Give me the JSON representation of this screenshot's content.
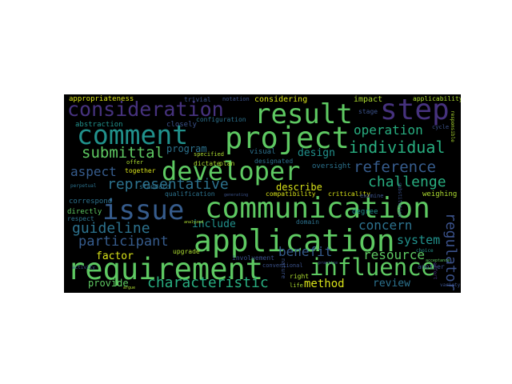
{
  "palette": {
    "background": "#000000",
    "purple": "#46327e",
    "indigo": "#3b528b",
    "blue": "#365c8d",
    "teal": "#2c728e",
    "green_teal": "#21918c",
    "sea": "#28ae80",
    "green": "#5ec962",
    "lime": "#addc30",
    "yellow": "#d8e219"
  },
  "words": {
    "communication": "communication",
    "application": "application",
    "requirement": "requirement",
    "project": "project",
    "developer": "developer",
    "issue": "issue",
    "result": "result",
    "consideration": "consideration",
    "step": "step",
    "comment": "comment",
    "influence": "influence",
    "characteristic": "characteristic",
    "individual": "individual",
    "reference": "reference",
    "representative": "representative",
    "submittal": "submittal",
    "guideline": "guideline",
    "participant": "participant",
    "challenge": "challenge",
    "operation": "operation",
    "aspect": "aspect",
    "benefit": "benefit",
    "concern": "concern",
    "system": "system",
    "resource": "resource",
    "regulator": "regulator",
    "method": "method",
    "review": "review",
    "provide": "provide",
    "factor": "factor",
    "describe": "describe",
    "design": "design",
    "include": "include",
    "program": "program",
    "appropriateness": "appropriateness",
    "considering": "considering",
    "impact": "impact",
    "applicability": "applicability",
    "abstraction": "abstraction",
    "closely": "closely",
    "configuration": "configuration",
    "visual": "visual",
    "oversight": "oversight",
    "compatibility": "compatibility",
    "qualification": "qualification",
    "standard": "standard",
    "correspond": "correspond",
    "directly": "directly",
    "respect": "respect",
    "upgrade": "upgrade",
    "weighing": "weighing",
    "domain": "domain",
    "degree": "degree",
    "trivial": "trivial",
    "notation": "notation",
    "specified": "specified",
    "designated": "designated",
    "dictate": "dictate",
    "plan": "plan",
    "together": "together",
    "offer": "offer",
    "criticality": "criticality",
    "examine": "examine",
    "right": "right",
    "life": "life",
    "stage": "stage",
    "cycle": "cycle",
    "responsible": "responsible",
    "substitution": "substitution",
    "involvement": "involvement",
    "choice": "choice",
    "another": "another",
    "generating": "generating",
    "analyzed": "analyzed",
    "practice": "practice",
    "nature": "nature",
    "effort": "effort",
    "activity": "activity",
    "argue": "argue",
    "perpetual": "perpetual",
    "acceptance": "acceptance",
    "conventional": "conventional",
    "variety": "variety"
  }
}
